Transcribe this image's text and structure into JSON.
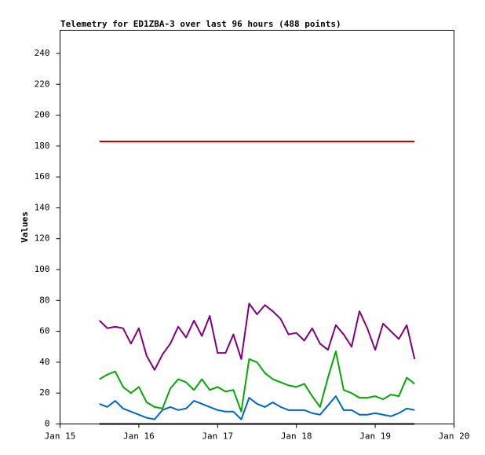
{
  "chart_data": {
    "type": "line",
    "title": "Telemetry for ED1ZBA-3 over last 96 hours (488 points)",
    "y_label": "Values",
    "xlim": [
      15,
      20
    ],
    "xticks": [
      {
        "value": 15,
        "label": "Jan 15"
      },
      {
        "value": 16,
        "label": "Jan 16"
      },
      {
        "value": 17,
        "label": "Jan 17"
      },
      {
        "value": 18,
        "label": "Jan 18"
      },
      {
        "value": 19,
        "label": "Jan 19"
      },
      {
        "value": 20,
        "label": "Jan 20"
      }
    ],
    "ylim": [
      0,
      255
    ],
    "yticks": [
      0,
      20,
      40,
      60,
      80,
      100,
      120,
      140,
      160,
      180,
      200,
      220,
      240
    ],
    "grid": false,
    "x": [
      15.5,
      15.6,
      15.7,
      15.8,
      15.9,
      16.0,
      16.1,
      16.2,
      16.3,
      16.4,
      16.5,
      16.6,
      16.7,
      16.8,
      16.9,
      17.0,
      17.1,
      17.2,
      17.3,
      17.4,
      17.5,
      17.6,
      17.7,
      17.8,
      17.9,
      18.0,
      18.1,
      18.2,
      18.3,
      18.4,
      18.5,
      18.6,
      18.7,
      18.8,
      18.9,
      19.0,
      19.1,
      19.2,
      19.3,
      19.4,
      19.5
    ],
    "series": [
      {
        "color": "#cc0000",
        "values": [
          183,
          183,
          183,
          183,
          183,
          183,
          183,
          183,
          183,
          183,
          183,
          183,
          183,
          183,
          183,
          183,
          183,
          183,
          183,
          183,
          183,
          183,
          183,
          183,
          183,
          183,
          183,
          183,
          183,
          183,
          183,
          183,
          183,
          183,
          183,
          183,
          183,
          183,
          183,
          183,
          183
        ]
      },
      {
        "color": "#800080",
        "values": [
          67,
          62,
          63,
          62,
          52,
          62,
          44,
          35,
          45,
          52,
          63,
          56,
          67,
          57,
          70,
          46,
          46,
          58,
          42,
          78,
          71,
          77,
          73,
          68,
          58,
          59,
          54,
          62,
          52,
          48,
          64,
          58,
          50,
          73,
          62,
          48,
          65,
          60,
          55,
          64,
          42
        ]
      },
      {
        "color": "#00aa00",
        "values": [
          29,
          32,
          34,
          24,
          20,
          24,
          14,
          11,
          10,
          23,
          29,
          27,
          22,
          29,
          22,
          24,
          21,
          22,
          8,
          42,
          40,
          33,
          29,
          27,
          25,
          24,
          26,
          18,
          11,
          30,
          47,
          22,
          20,
          17,
          17,
          18,
          16,
          19,
          18,
          30,
          26
        ]
      },
      {
        "color": "#0066cc",
        "values": [
          13,
          11,
          15,
          10,
          8,
          6,
          4,
          3,
          9,
          11,
          9,
          10,
          15,
          13,
          11,
          9,
          8,
          8,
          3,
          17,
          13,
          11,
          14,
          11,
          9,
          9,
          9,
          7,
          6,
          12,
          18,
          9,
          9,
          6,
          6,
          7,
          6,
          5,
          7,
          10,
          9
        ]
      },
      {
        "color": "#000000",
        "values": [
          0,
          0,
          0,
          0,
          0,
          0,
          0,
          0,
          0,
          0,
          0,
          0,
          0,
          0,
          0,
          0,
          0,
          0,
          0,
          0,
          0,
          0,
          0,
          0,
          0,
          0,
          0,
          0,
          0,
          0,
          0,
          0,
          0,
          0,
          0,
          0,
          0,
          0,
          0,
          0,
          0
        ]
      }
    ]
  }
}
